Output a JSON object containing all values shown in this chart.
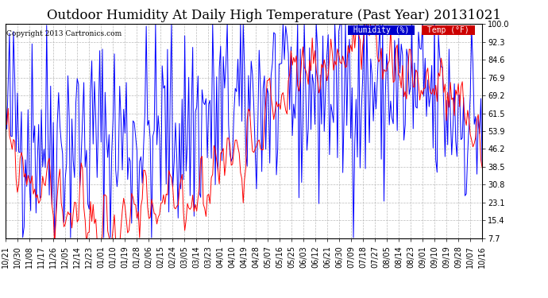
{
  "title": "Outdoor Humidity At Daily High Temperature (Past Year) 20131021",
  "copyright": "Copyright 2013 Cartronics.com",
  "legend_humidity": "Humidity (%)",
  "legend_temp": "Temp (°F)",
  "yticks": [
    7.7,
    15.4,
    23.1,
    30.8,
    38.5,
    46.2,
    53.9,
    61.5,
    69.2,
    76.9,
    84.6,
    92.3,
    100.0
  ],
  "ymin": 7.7,
  "ymax": 100.0,
  "xtick_labels": [
    "10/21",
    "10/30",
    "11/08",
    "11/17",
    "11/26",
    "12/05",
    "12/14",
    "12/23",
    "01/01",
    "01/10",
    "01/19",
    "01/28",
    "02/06",
    "02/15",
    "02/24",
    "03/05",
    "03/14",
    "03/23",
    "04/01",
    "04/10",
    "04/19",
    "04/28",
    "05/07",
    "05/16",
    "05/25",
    "06/03",
    "06/12",
    "06/21",
    "06/30",
    "07/09",
    "07/18",
    "07/27",
    "08/05",
    "08/14",
    "08/23",
    "09/01",
    "09/10",
    "09/19",
    "09/28",
    "10/07",
    "10/16"
  ],
  "bg_color": "#ffffff",
  "plot_bg_color": "#ffffff",
  "grid_color": "#aaaaaa",
  "humidity_color": "#0000ff",
  "temp_color": "#ff0000",
  "black_color": "#000000",
  "title_fontsize": 12,
  "axis_fontsize": 7,
  "legend_bg_humidity": "#0000cc",
  "legend_bg_temp": "#cc0000",
  "n_days": 360,
  "humidity_seed": 42,
  "temp_seed": 99
}
